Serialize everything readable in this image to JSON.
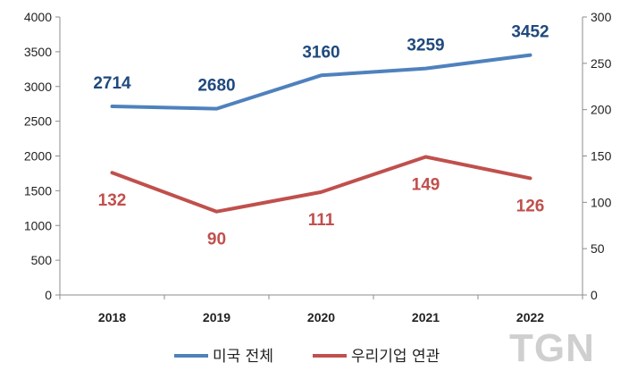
{
  "chart_data": {
    "type": "line",
    "categories": [
      "2018",
      "2019",
      "2020",
      "2021",
      "2022"
    ],
    "ylim_left": [
      0,
      4000
    ],
    "yticks_left": [
      0,
      500,
      1000,
      1500,
      2000,
      2500,
      3000,
      3500,
      4000
    ],
    "ylim_right": [
      0,
      300
    ],
    "yticks_right": [
      0,
      50,
      100,
      150,
      200,
      250,
      300
    ],
    "grid": false,
    "legend_position": "bottom",
    "series": [
      {
        "name": "미국 전체",
        "axis": "left",
        "color": "#4F81BD",
        "label_color": "#1F497D",
        "values": [
          2714,
          2680,
          3160,
          3259,
          3452
        ]
      },
      {
        "name": "우리기업 연관",
        "axis": "right",
        "color": "#C0504D",
        "label_color": "#C0504D",
        "values": [
          132,
          90,
          111,
          149,
          126
        ]
      }
    ]
  },
  "watermark": "TGN"
}
